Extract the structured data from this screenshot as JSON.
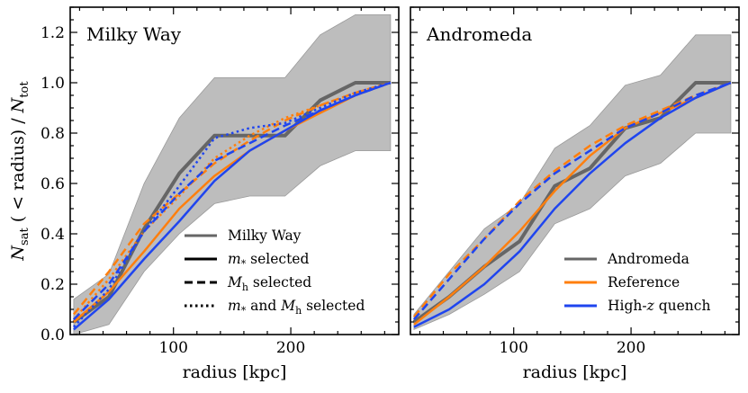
{
  "chart_data": [
    {
      "type": "line",
      "title": "Milky Way",
      "xlabel": "radius [kpc]",
      "ylabel": "N_sat (< radius) / N_tot",
      "xlim": [
        12,
        292
      ],
      "ylim": [
        0,
        1.3
      ],
      "xticks": [
        100,
        200
      ],
      "yticks": [
        0.0,
        0.2,
        0.4,
        0.6,
        0.8,
        1.0,
        1.2
      ],
      "band": {
        "x": [
          15,
          45,
          75,
          105,
          135,
          165,
          195,
          225,
          255,
          285
        ],
        "lower": [
          0.0,
          0.04,
          0.25,
          0.4,
          0.52,
          0.55,
          0.55,
          0.67,
          0.73,
          0.73
        ],
        "upper": [
          0.14,
          0.24,
          0.6,
          0.86,
          1.02,
          1.02,
          1.02,
          1.19,
          1.27,
          1.27
        ]
      },
      "series": [
        {
          "name": "Milky Way observed",
          "color": "#666666",
          "dash": "solid",
          "width": 4,
          "x": [
            15,
            45,
            75,
            105,
            135,
            165,
            195,
            225,
            255,
            285
          ],
          "y": [
            0.05,
            0.15,
            0.42,
            0.64,
            0.79,
            0.79,
            0.79,
            0.93,
            1.0,
            1.0
          ]
        },
        {
          "name": "Reference m* selected",
          "color": "#ff7f0e",
          "dash": "solid",
          "width": 2.5,
          "x": [
            15,
            45,
            75,
            105,
            135,
            165,
            195,
            225,
            255,
            285
          ],
          "y": [
            0.05,
            0.17,
            0.33,
            0.5,
            0.63,
            0.73,
            0.81,
            0.88,
            0.95,
            1.0
          ]
        },
        {
          "name": "Reference Mh selected",
          "color": "#ff7f0e",
          "dash": "dashed",
          "width": 2.5,
          "x": [
            15,
            45,
            75,
            105,
            135,
            165,
            195,
            225,
            255,
            285
          ],
          "y": [
            0.08,
            0.25,
            0.44,
            0.56,
            0.68,
            0.77,
            0.85,
            0.91,
            0.96,
            1.0
          ]
        },
        {
          "name": "Reference m* and Mh selected",
          "color": "#ff7f0e",
          "dash": "dotted",
          "width": 2.5,
          "x": [
            15,
            45,
            75,
            105,
            135,
            165,
            195,
            225,
            255,
            285
          ],
          "y": [
            0.06,
            0.22,
            0.41,
            0.55,
            0.7,
            0.79,
            0.86,
            0.91,
            0.96,
            1.0
          ]
        },
        {
          "name": "High-z quench m* selected",
          "color": "#1f45ef",
          "dash": "solid",
          "width": 2.5,
          "x": [
            15,
            45,
            75,
            105,
            135,
            165,
            195,
            225,
            255,
            285
          ],
          "y": [
            0.02,
            0.14,
            0.3,
            0.45,
            0.61,
            0.73,
            0.81,
            0.89,
            0.95,
            1.0
          ]
        },
        {
          "name": "High-z quench Mh selected",
          "color": "#1f45ef",
          "dash": "dashed",
          "width": 2.5,
          "x": [
            15,
            45,
            75,
            105,
            135,
            165,
            195,
            225,
            255,
            285
          ],
          "y": [
            0.06,
            0.2,
            0.41,
            0.56,
            0.69,
            0.76,
            0.83,
            0.89,
            0.95,
            1.0
          ]
        },
        {
          "name": "High-z quench m* and Mh selected",
          "color": "#1f45ef",
          "dash": "dotted",
          "width": 2.5,
          "x": [
            15,
            45,
            75,
            105,
            135,
            165,
            195,
            225,
            255,
            285
          ],
          "y": [
            0.03,
            0.18,
            0.41,
            0.59,
            0.78,
            0.82,
            0.84,
            0.9,
            0.96,
            1.0
          ]
        }
      ],
      "legend": {
        "placement": "lower-right",
        "entries": [
          {
            "label_parts": [
              {
                "t": "Milky Way"
              }
            ],
            "color": "#666666",
            "dash": "solid"
          },
          {
            "label_parts": [
              {
                "t": "m",
                "italic": true
              },
              {
                "t": "*",
                "sub": true
              },
              {
                "t": " selected"
              }
            ],
            "color": "#000000",
            "dash": "solid"
          },
          {
            "label_parts": [
              {
                "t": "M",
                "italic": true
              },
              {
                "t": "h",
                "sub": true
              },
              {
                "t": " selected"
              }
            ],
            "color": "#000000",
            "dash": "dashed"
          },
          {
            "label_parts": [
              {
                "t": "m",
                "italic": true
              },
              {
                "t": "*",
                "sub": true
              },
              {
                "t": " and "
              },
              {
                "t": "M",
                "italic": true
              },
              {
                "t": "h",
                "sub": true
              },
              {
                "t": " selected"
              }
            ],
            "color": "#000000",
            "dash": "dotted"
          }
        ]
      }
    },
    {
      "type": "line",
      "title": "Andromeda",
      "xlabel": "radius [kpc]",
      "ylabel": "",
      "xlim": [
        12,
        292
      ],
      "ylim": [
        0,
        1.3
      ],
      "xticks": [
        100,
        200
      ],
      "yticks": [
        0.0,
        0.2,
        0.4,
        0.6,
        0.8,
        1.0,
        1.2
      ],
      "band": {
        "x": [
          15,
          45,
          75,
          105,
          135,
          165,
          195,
          225,
          255,
          285
        ],
        "lower": [
          0.02,
          0.08,
          0.16,
          0.25,
          0.44,
          0.5,
          0.63,
          0.68,
          0.8,
          0.8
        ],
        "upper": [
          0.08,
          0.25,
          0.42,
          0.52,
          0.74,
          0.83,
          0.99,
          1.03,
          1.19,
          1.19
        ]
      },
      "series": [
        {
          "name": "Andromeda observed",
          "color": "#666666",
          "dash": "solid",
          "width": 4,
          "x": [
            15,
            45,
            75,
            105,
            135,
            165,
            195,
            225,
            255,
            285
          ],
          "y": [
            0.05,
            0.15,
            0.27,
            0.37,
            0.59,
            0.66,
            0.82,
            0.86,
            1.0,
            1.0
          ]
        },
        {
          "name": "Reference",
          "color": "#ff7f0e",
          "dash": "solid",
          "width": 2.5,
          "x": [
            15,
            45,
            75,
            105,
            135,
            165,
            195,
            225,
            255,
            285
          ],
          "y": [
            0.04,
            0.15,
            0.27,
            0.41,
            0.57,
            0.71,
            0.82,
            0.88,
            0.94,
            1.0
          ]
        },
        {
          "name": "Reference dashed",
          "color": "#ff7f0e",
          "dash": "dashed",
          "width": 2.5,
          "x": [
            15,
            45,
            75,
            105,
            135,
            165,
            195,
            225,
            255,
            285
          ],
          "y": [
            0.07,
            0.24,
            0.38,
            0.53,
            0.65,
            0.75,
            0.83,
            0.89,
            0.95,
            1.0
          ]
        },
        {
          "name": "High-z quench",
          "color": "#1f45ef",
          "dash": "solid",
          "width": 2.5,
          "x": [
            15,
            45,
            75,
            105,
            135,
            165,
            195,
            225,
            255,
            285
          ],
          "y": [
            0.03,
            0.1,
            0.2,
            0.33,
            0.5,
            0.64,
            0.76,
            0.86,
            0.94,
            1.0
          ]
        },
        {
          "name": "High-z quench dashed",
          "color": "#1f45ef",
          "dash": "dashed",
          "width": 2.5,
          "x": [
            15,
            45,
            75,
            105,
            135,
            165,
            195,
            225,
            255,
            285
          ],
          "y": [
            0.06,
            0.22,
            0.38,
            0.52,
            0.64,
            0.73,
            0.82,
            0.88,
            0.95,
            1.0
          ]
        }
      ],
      "legend": {
        "placement": "lower-right",
        "entries": [
          {
            "label_parts": [
              {
                "t": "Andromeda"
              }
            ],
            "color": "#666666",
            "dash": "solid"
          },
          {
            "label_parts": [
              {
                "t": "Reference"
              }
            ],
            "color": "#ff7f0e",
            "dash": "solid"
          },
          {
            "label_parts": [
              {
                "t": "High-"
              },
              {
                "t": "z",
                "italic": true
              },
              {
                "t": " quench"
              }
            ],
            "color": "#1f45ef",
            "dash": "solid"
          }
        ]
      }
    }
  ],
  "band_color": "#bdbdbd",
  "ylabel_parts": [
    {
      "t": "N",
      "italic": true
    },
    {
      "t": "sat",
      "sub": true
    },
    {
      "t": " ( < radius) / "
    },
    {
      "t": "N",
      "italic": true
    },
    {
      "t": "tot",
      "sub": true
    }
  ]
}
